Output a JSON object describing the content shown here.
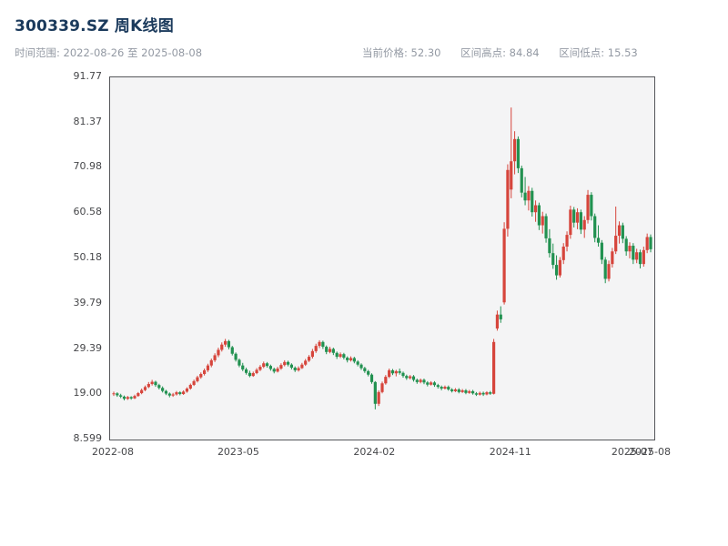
{
  "header": {
    "title": "300339.SZ 周K线图",
    "range": {
      "label": "时间范围:",
      "value": "2022-08-26 至 2025-08-08"
    },
    "stats": [
      {
        "label": "当前价格:",
        "value": "52.30"
      },
      {
        "label": "区间高点:",
        "value": "84.84"
      },
      {
        "label": "区间低点:",
        "value": "15.53"
      }
    ]
  },
  "chart_data": {
    "type": "candlestick",
    "title": "300339.SZ 周K线图",
    "symbol": "300339.SZ",
    "interval": "weekly",
    "date_range": {
      "start": "2022-08-26",
      "end": "2025-08-08"
    },
    "current_price": 52.3,
    "range_high": 84.84,
    "range_low": 15.53,
    "ylim": [
      8.599,
      91.77
    ],
    "grid": false,
    "legend": "none",
    "y_ticks": [
      {
        "value": 91.77,
        "label": "91.77"
      },
      {
        "value": 81.37,
        "label": "81.37"
      },
      {
        "value": 70.98,
        "label": "70.98"
      },
      {
        "value": 60.58,
        "label": "60.58"
      },
      {
        "value": 50.18,
        "label": "50.18"
      },
      {
        "value": 39.79,
        "label": "39.79"
      },
      {
        "value": 29.39,
        "label": "29.39"
      },
      {
        "value": 19.0,
        "label": "19.00"
      },
      {
        "value": 8.599,
        "label": "8.599"
      }
    ],
    "x_ticks": [
      {
        "index": 0,
        "label": "2022-08"
      },
      {
        "index": 36,
        "label": "2023-05"
      },
      {
        "index": 75,
        "label": "2024-02"
      },
      {
        "index": 114,
        "label": "2024-11"
      },
      {
        "index": 149,
        "label": "2025-07"
      },
      {
        "index": 154,
        "label": "2025-08"
      }
    ],
    "colors": {
      "up": "#d6453c",
      "down": "#219150",
      "plot_bg": "#f4f4f5",
      "spine": "#55565a",
      "title": "#1b3a5c",
      "muted": "#9399a3",
      "axis": "#46474a"
    },
    "candles": [
      [
        19.0,
        19.6,
        18.6,
        19.2
      ],
      [
        19.2,
        19.45,
        18.4,
        18.75
      ],
      [
        18.75,
        19.1,
        18.1,
        18.45
      ],
      [
        18.45,
        18.7,
        17.6,
        17.95
      ],
      [
        17.95,
        18.6,
        17.7,
        18.35
      ],
      [
        18.35,
        18.55,
        17.75,
        18.05
      ],
      [
        18.05,
        18.9,
        17.9,
        18.6
      ],
      [
        18.6,
        19.5,
        18.4,
        19.25
      ],
      [
        19.25,
        20.3,
        19.0,
        19.95
      ],
      [
        19.95,
        21.0,
        19.7,
        20.65
      ],
      [
        20.65,
        21.8,
        20.4,
        21.35
      ],
      [
        21.35,
        22.3,
        21.0,
        21.85
      ],
      [
        21.85,
        22.1,
        20.7,
        21.1
      ],
      [
        21.1,
        21.4,
        20.1,
        20.45
      ],
      [
        20.45,
        20.8,
        19.4,
        19.75
      ],
      [
        19.75,
        20.0,
        18.8,
        19.15
      ],
      [
        19.15,
        19.4,
        18.3,
        18.7
      ],
      [
        18.7,
        19.3,
        18.4,
        18.95
      ],
      [
        18.95,
        19.75,
        18.7,
        19.45
      ],
      [
        19.45,
        19.7,
        18.75,
        19.05
      ],
      [
        19.05,
        19.9,
        18.85,
        19.6
      ],
      [
        19.6,
        20.6,
        19.35,
        20.3
      ],
      [
        20.3,
        21.45,
        20.05,
        21.15
      ],
      [
        21.15,
        22.35,
        20.9,
        22.0
      ],
      [
        22.0,
        23.25,
        21.7,
        22.9
      ],
      [
        22.9,
        24.0,
        22.55,
        23.65
      ],
      [
        23.65,
        24.9,
        23.3,
        24.5
      ],
      [
        24.5,
        26.0,
        24.1,
        25.6
      ],
      [
        25.6,
        27.2,
        25.2,
        26.8
      ],
      [
        26.8,
        28.4,
        26.4,
        27.95
      ],
      [
        27.95,
        29.7,
        27.5,
        29.2
      ],
      [
        29.2,
        30.9,
        28.8,
        30.4
      ],
      [
        30.4,
        31.7,
        29.9,
        31.2
      ],
      [
        31.2,
        31.5,
        29.3,
        29.8
      ],
      [
        29.8,
        30.1,
        27.9,
        28.3
      ],
      [
        28.3,
        28.6,
        26.5,
        26.9
      ],
      [
        26.9,
        27.2,
        25.2,
        25.6
      ],
      [
        25.6,
        26.2,
        24.3,
        24.7
      ],
      [
        24.7,
        25.1,
        23.5,
        23.9
      ],
      [
        23.9,
        24.4,
        22.9,
        23.2
      ],
      [
        23.2,
        24.2,
        23.0,
        23.85
      ],
      [
        23.85,
        25.0,
        23.6,
        24.6
      ],
      [
        24.6,
        25.7,
        24.3,
        25.3
      ],
      [
        25.3,
        26.5,
        25.0,
        26.1
      ],
      [
        26.1,
        26.4,
        25.1,
        25.5
      ],
      [
        25.5,
        25.8,
        24.4,
        24.8
      ],
      [
        24.8,
        25.1,
        23.8,
        24.2
      ],
      [
        24.2,
        25.3,
        24.0,
        24.9
      ],
      [
        24.9,
        26.1,
        24.6,
        25.7
      ],
      [
        25.7,
        26.8,
        25.4,
        26.4
      ],
      [
        26.4,
        26.7,
        25.4,
        25.8
      ],
      [
        25.8,
        26.1,
        24.7,
        25.1
      ],
      [
        25.1,
        25.4,
        24.1,
        24.5
      ],
      [
        24.5,
        25.4,
        24.2,
        25.0
      ],
      [
        25.0,
        26.2,
        24.8,
        25.8
      ],
      [
        25.8,
        27.1,
        25.5,
        26.7
      ],
      [
        26.7,
        28.0,
        26.4,
        27.6
      ],
      [
        27.6,
        29.4,
        27.2,
        28.9
      ],
      [
        28.9,
        30.6,
        28.5,
        30.1
      ],
      [
        30.1,
        31.4,
        29.6,
        31.0
      ],
      [
        31.0,
        31.3,
        29.4,
        29.9
      ],
      [
        29.9,
        30.2,
        28.2,
        28.7
      ],
      [
        28.7,
        29.9,
        28.4,
        29.4
      ],
      [
        29.4,
        29.7,
        28.0,
        28.5
      ],
      [
        28.5,
        28.8,
        27.1,
        27.6
      ],
      [
        27.6,
        28.6,
        27.3,
        28.2
      ],
      [
        28.2,
        28.5,
        27.0,
        27.4
      ],
      [
        27.4,
        27.7,
        26.3,
        26.8
      ],
      [
        26.8,
        27.7,
        26.5,
        27.3
      ],
      [
        27.3,
        27.6,
        26.1,
        26.5
      ],
      [
        26.5,
        26.8,
        25.4,
        25.8
      ],
      [
        25.8,
        26.1,
        24.6,
        25.0
      ],
      [
        25.0,
        25.3,
        23.9,
        24.3
      ],
      [
        24.3,
        24.6,
        23.1,
        23.5
      ],
      [
        23.5,
        23.8,
        21.4,
        21.8
      ],
      [
        21.8,
        22.0,
        15.53,
        16.8
      ],
      [
        16.8,
        19.9,
        16.3,
        19.5
      ],
      [
        19.5,
        21.9,
        19.2,
        21.5
      ],
      [
        21.5,
        23.4,
        21.2,
        23.0
      ],
      [
        23.0,
        24.9,
        22.7,
        24.5
      ],
      [
        24.5,
        24.8,
        23.4,
        23.8
      ],
      [
        23.8,
        24.6,
        23.1,
        24.3
      ],
      [
        24.3,
        24.9,
        23.5,
        23.9
      ],
      [
        23.9,
        24.2,
        22.8,
        23.2
      ],
      [
        23.2,
        23.5,
        22.3,
        22.7
      ],
      [
        22.7,
        23.4,
        22.4,
        23.1
      ],
      [
        23.1,
        23.4,
        21.9,
        22.3
      ],
      [
        22.3,
        22.6,
        21.4,
        21.8
      ],
      [
        21.8,
        22.6,
        21.5,
        22.3
      ],
      [
        22.3,
        22.6,
        21.3,
        21.7
      ],
      [
        21.7,
        22.0,
        20.8,
        21.2
      ],
      [
        21.2,
        22.0,
        21.0,
        21.7
      ],
      [
        21.7,
        22.0,
        20.7,
        21.1
      ],
      [
        21.1,
        21.4,
        20.3,
        20.7
      ],
      [
        20.7,
        21.0,
        19.9,
        20.3
      ],
      [
        20.3,
        21.0,
        20.1,
        20.7
      ],
      [
        20.7,
        21.0,
        19.8,
        20.1
      ],
      [
        20.1,
        20.4,
        19.4,
        19.7
      ],
      [
        19.7,
        20.4,
        19.5,
        20.1
      ],
      [
        20.1,
        20.4,
        19.2,
        19.5
      ],
      [
        19.5,
        20.2,
        19.3,
        19.9
      ],
      [
        19.9,
        20.2,
        19.0,
        19.3
      ],
      [
        19.3,
        20.0,
        19.1,
        19.7
      ],
      [
        19.7,
        20.0,
        18.9,
        19.2
      ],
      [
        19.2,
        19.5,
        18.6,
        18.9
      ],
      [
        18.9,
        19.6,
        18.7,
        19.3
      ],
      [
        19.3,
        19.6,
        18.6,
        18.95
      ],
      [
        18.95,
        19.7,
        18.75,
        19.45
      ],
      [
        19.45,
        19.75,
        18.85,
        19.1
      ],
      [
        19.1,
        31.7,
        18.95,
        31.0
      ],
      [
        34.1,
        38.2,
        33.6,
        37.3
      ],
      [
        37.3,
        39.2,
        35.4,
        36.2
      ],
      [
        40.1,
        58.5,
        39.6,
        57.0
      ],
      [
        57.0,
        71.8,
        55.2,
        70.5
      ],
      [
        66.0,
        84.84,
        64.0,
        72.5
      ],
      [
        72.5,
        79.4,
        69.5,
        77.6
      ],
      [
        77.6,
        78.2,
        69.8,
        70.9
      ],
      [
        70.9,
        71.5,
        64.2,
        65.3
      ],
      [
        65.3,
        68.9,
        62.4,
        63.5
      ],
      [
        63.5,
        66.8,
        61.2,
        65.7
      ],
      [
        65.7,
        66.4,
        59.8,
        60.8
      ],
      [
        60.8,
        63.5,
        58.6,
        62.4
      ],
      [
        62.4,
        63.0,
        56.7,
        57.8
      ],
      [
        57.8,
        60.9,
        55.9,
        59.9
      ],
      [
        59.9,
        60.5,
        53.8,
        54.8
      ],
      [
        54.8,
        56.9,
        50.4,
        51.4
      ],
      [
        51.4,
        53.6,
        47.8,
        48.7
      ],
      [
        48.7,
        50.9,
        45.3,
        46.3
      ],
      [
        46.3,
        50.5,
        45.8,
        49.8
      ],
      [
        49.8,
        53.7,
        48.9,
        52.9
      ],
      [
        52.9,
        56.4,
        51.8,
        55.6
      ],
      [
        55.6,
        62.3,
        54.7,
        61.4
      ],
      [
        61.4,
        62.0,
        57.3,
        58.4
      ],
      [
        58.4,
        61.7,
        56.9,
        60.8
      ],
      [
        60.8,
        61.4,
        55.8,
        56.8
      ],
      [
        56.8,
        59.9,
        54.9,
        59.0
      ],
      [
        59.0,
        65.9,
        58.2,
        64.8
      ],
      [
        64.8,
        65.4,
        58.9,
        59.9
      ],
      [
        59.9,
        60.5,
        53.9,
        54.9
      ],
      [
        54.9,
        57.8,
        52.9,
        53.8
      ],
      [
        53.8,
        54.4,
        48.9,
        49.9
      ],
      [
        49.9,
        50.5,
        44.5,
        45.5
      ],
      [
        45.5,
        49.7,
        44.9,
        48.9
      ],
      [
        48.9,
        52.6,
        48.1,
        51.8
      ],
      [
        51.8,
        62.1,
        51.2,
        55.4
      ],
      [
        55.4,
        58.7,
        53.6,
        57.8
      ],
      [
        57.8,
        58.4,
        53.7,
        54.7
      ],
      [
        54.7,
        55.3,
        50.8,
        51.8
      ],
      [
        51.8,
        53.9,
        50.2,
        53.1
      ],
      [
        53.1,
        53.7,
        48.9,
        49.9
      ],
      [
        49.9,
        52.4,
        49.1,
        51.6
      ],
      [
        51.6,
        52.2,
        47.9,
        48.9
      ],
      [
        48.9,
        52.9,
        48.3,
        52.1
      ],
      [
        52.1,
        55.9,
        51.4,
        55.1
      ],
      [
        55.1,
        55.7,
        51.6,
        52.3
      ]
    ]
  }
}
